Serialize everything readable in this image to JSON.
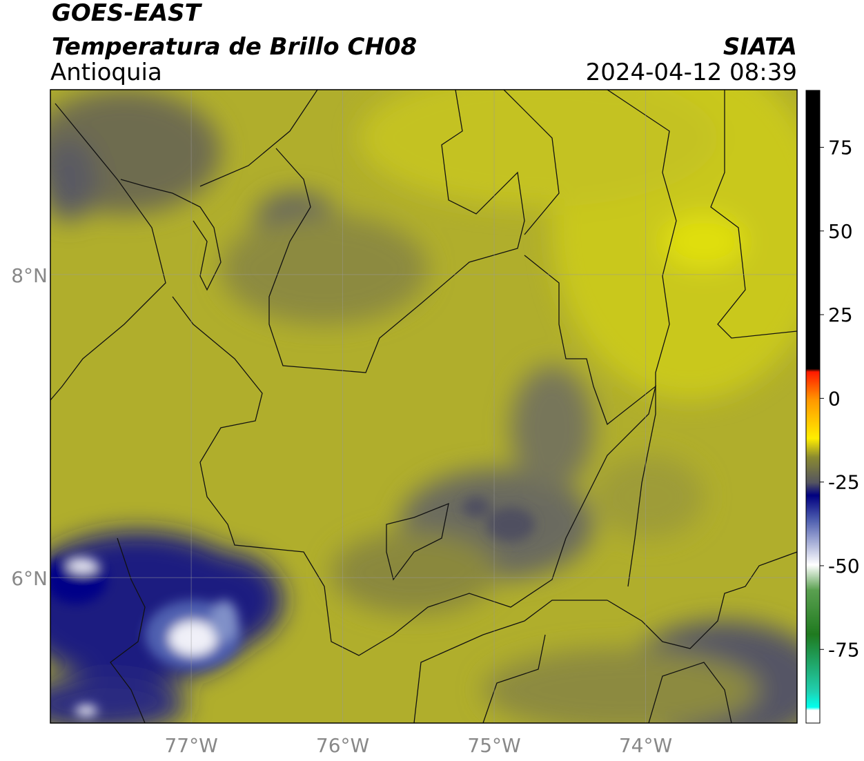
{
  "header": {
    "title": "GOES-EAST",
    "subtitle": "Temperatura de Brillo CH08",
    "region": "Antioquia",
    "source": "SIATA",
    "datetime": "2024-04-12 08:39"
  },
  "map": {
    "xlim": [
      -77.93,
      -73.0
    ],
    "ylim": [
      5.04,
      9.22
    ],
    "xticks": [
      {
        "value": -77,
        "label": "77°W"
      },
      {
        "value": -76,
        "label": "76°W"
      },
      {
        "value": -75,
        "label": "75°W"
      },
      {
        "value": -74,
        "label": "74°W"
      }
    ],
    "yticks": [
      {
        "value": 6,
        "label": "6°N"
      },
      {
        "value": 8,
        "label": "8°N"
      }
    ],
    "grid": true
  },
  "colorbar": {
    "lim": [
      -97,
      92
    ],
    "ticks": [
      75,
      50,
      25,
      0,
      -25,
      -50,
      -75
    ]
  }
}
